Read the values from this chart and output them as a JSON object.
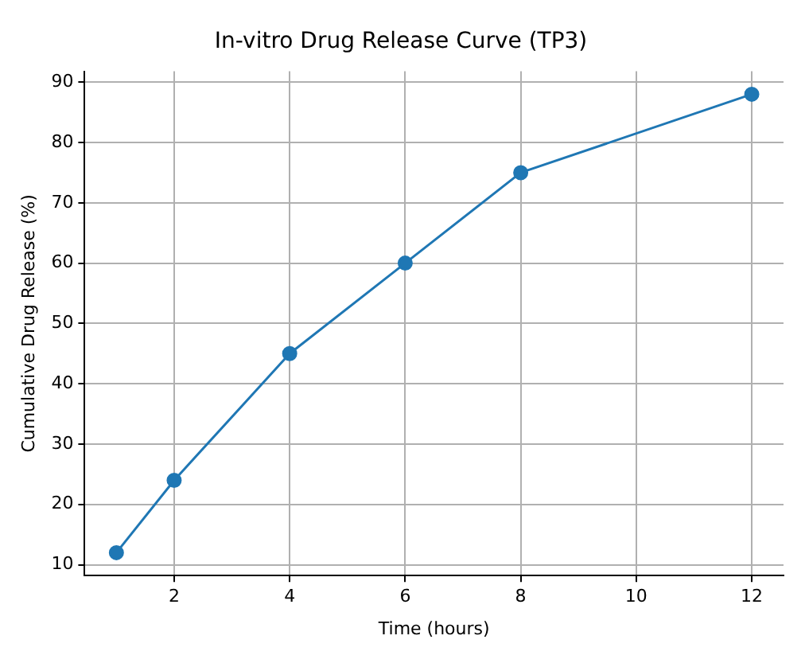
{
  "chart_data": {
    "type": "line",
    "title": "In-vitro Drug Release Curve (TP3)",
    "xlabel": "Time (hours)",
    "ylabel": "Cumulative Drug Release (%)",
    "x": [
      1,
      2,
      4,
      6,
      8,
      12
    ],
    "series": [
      {
        "color": "#1f77b4",
        "values": [
          12,
          24,
          45,
          60,
          75,
          88
        ]
      }
    ],
    "xlim": [
      0.45,
      12.55
    ],
    "xticks": [
      2,
      4,
      6,
      8,
      10,
      12
    ],
    "ylim": [
      8.2,
      91.8
    ],
    "yticks": [
      10,
      20,
      30,
      40,
      50,
      60,
      70,
      80,
      90
    ],
    "grid": true,
    "legend": false,
    "marker": "circle",
    "line_style": "solid"
  }
}
